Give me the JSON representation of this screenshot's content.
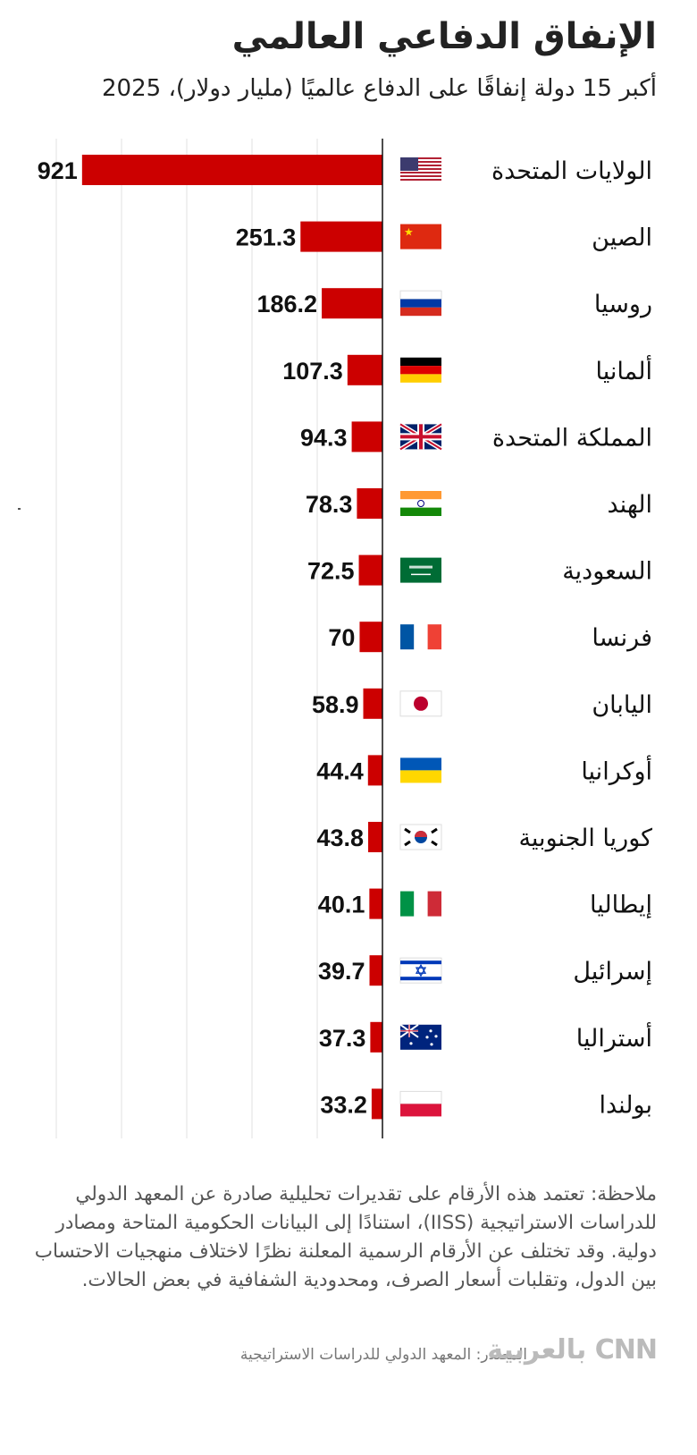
{
  "chart_data": {
    "type": "bar",
    "orientation": "horizontal",
    "title": "الإنفاق الدفاعي العالمي",
    "subtitle": "أكبر 15 دولة إنفاقًا على الدفاع عالميًا (مليار دولار)، 2025",
    "categories": [
      "الولايات المتحدة",
      "الصين",
      "روسيا",
      "ألمانيا",
      "المملكة المتحدة",
      "الهند",
      "السعودية",
      "فرنسا",
      "اليابان",
      "أوكرانيا",
      "كوريا الجنوبية",
      "إيطاليا",
      "إسرائيل",
      "أستراليا",
      "بولندا"
    ],
    "flags": [
      "us-flag-icon",
      "china-flag-icon",
      "russia-flag-icon",
      "germany-flag-icon",
      "uk-flag-icon",
      "india-flag-icon",
      "saudi-flag-icon",
      "france-flag-icon",
      "japan-flag-icon",
      "ukraine-flag-icon",
      "south-korea-flag-icon",
      "italy-flag-icon",
      "israel-flag-icon",
      "australia-flag-icon",
      "poland-flag-icon"
    ],
    "values": [
      921,
      251.3,
      186.2,
      107.3,
      94.3,
      78.3,
      72.5,
      70,
      58.9,
      44.4,
      43.8,
      40.1,
      39.7,
      37.3,
      33.2
    ],
    "value_labels": [
      "921",
      "251.3",
      "186.2",
      "107.3",
      "94.3",
      "78.3",
      "72.5",
      "70",
      "58.9",
      "44.4",
      "43.8",
      "40.1",
      "39.7",
      "37.3",
      "33.2"
    ],
    "xlim": [
      0,
      1000
    ],
    "grid_values": [
      200,
      400,
      600,
      800,
      1000
    ],
    "grid": true,
    "bar_color": "#cc0000",
    "direction": "right-to-left"
  },
  "note": "ملاحظة: تعتمد هذه الأرقام على تقديرات تحليلية صادرة عن المعهد الدولي للدراسات الاستراتيجية (IISS)، استنادًا إلى البيانات الحكومية المتاحة ومصادر دولية. وقد تختلف عن الأرقام الرسمية المعلنة نظرًا لاختلاف منهجيات الاحتساب بين الدول، وتقلبات أسعار الصرف، ومحدودية الشفافية في بعض الحالات.",
  "source": "المصدر: المعهد الدولي للدراسات الاستراتيجية",
  "logo": "CNN بالعربية"
}
